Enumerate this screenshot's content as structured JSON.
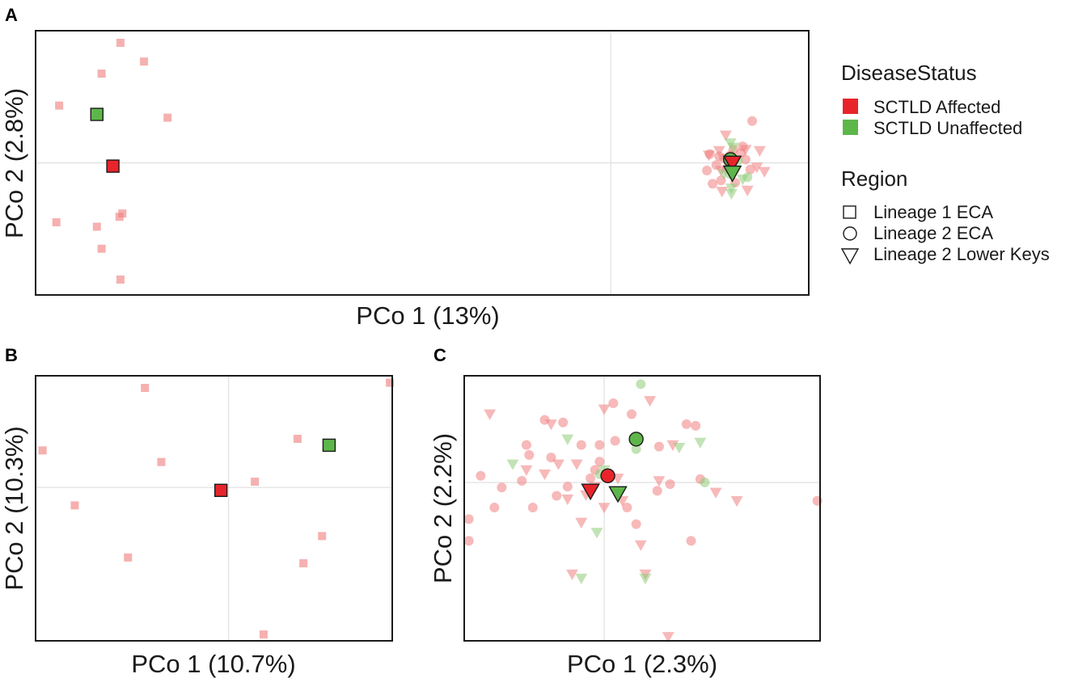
{
  "colors": {
    "affected": "#e8242a",
    "unaffected": "#5db64a",
    "affected_point": "#f08e8e",
    "unaffected_point": "#9fd28c"
  },
  "legend": {
    "disease_title": "DiseaseStatus",
    "disease_items": [
      {
        "label": "SCTLD Affected",
        "status": "affected"
      },
      {
        "label": "SCTLD Unaffected",
        "status": "unaffected"
      }
    ],
    "region_title": "Region",
    "region_items": [
      {
        "label": "Lineage 1 ECA",
        "shape": "square"
      },
      {
        "label": "Lineage 2 ECA",
        "shape": "circle"
      },
      {
        "label": "Lineage 2 Lower Keys",
        "shape": "triangle"
      }
    ]
  },
  "chart_data": [
    {
      "id": "A",
      "panel_label": "A",
      "type": "scatter",
      "xlabel": "PCo 1 (13%)",
      "ylabel": "PCo 2 (2.8%)",
      "xlim": [
        -0.61,
        0.21
      ],
      "ylim": [
        -0.12,
        0.12
      ],
      "points": [
        {
          "x": -0.52,
          "y": 0.109,
          "s": "a",
          "sh": "square"
        },
        {
          "x": -0.495,
          "y": 0.092,
          "s": "a",
          "sh": "square"
        },
        {
          "x": -0.54,
          "y": 0.081,
          "s": "a",
          "sh": "square"
        },
        {
          "x": -0.585,
          "y": 0.052,
          "s": "a",
          "sh": "square"
        },
        {
          "x": -0.47,
          "y": 0.041,
          "s": "a",
          "sh": "square"
        },
        {
          "x": -0.518,
          "y": -0.046,
          "s": "a",
          "sh": "square"
        },
        {
          "x": -0.521,
          "y": -0.049,
          "s": "a",
          "sh": "square"
        },
        {
          "x": -0.588,
          "y": -0.054,
          "s": "a",
          "sh": "square"
        },
        {
          "x": -0.545,
          "y": -0.058,
          "s": "a",
          "sh": "square"
        },
        {
          "x": -0.54,
          "y": -0.078,
          "s": "a",
          "sh": "square"
        },
        {
          "x": -0.52,
          "y": -0.106,
          "s": "a",
          "sh": "square"
        },
        {
          "x": 0.15,
          "y": 0.038,
          "s": "a",
          "sh": "circle"
        },
        {
          "x": 0.13,
          "y": 0.012,
          "s": "a",
          "sh": "circle"
        },
        {
          "x": 0.14,
          "y": 0.015,
          "s": "a",
          "sh": "circle"
        },
        {
          "x": 0.105,
          "y": 0.008,
          "s": "a",
          "sh": "circle"
        },
        {
          "x": 0.115,
          "y": 0.006,
          "s": "a",
          "sh": "circle"
        },
        {
          "x": 0.12,
          "y": 0.004,
          "s": "a",
          "sh": "circle"
        },
        {
          "x": 0.127,
          "y": 0.007,
          "s": "a",
          "sh": "circle"
        },
        {
          "x": 0.138,
          "y": 0.009,
          "s": "a",
          "sh": "circle"
        },
        {
          "x": 0.143,
          "y": 0.003,
          "s": "a",
          "sh": "circle"
        },
        {
          "x": 0.102,
          "y": -0.007,
          "s": "a",
          "sh": "circle"
        },
        {
          "x": 0.112,
          "y": -0.002,
          "s": "a",
          "sh": "circle"
        },
        {
          "x": 0.123,
          "y": -0.005,
          "s": "a",
          "sh": "circle"
        },
        {
          "x": 0.148,
          "y": -0.006,
          "s": "a",
          "sh": "circle"
        },
        {
          "x": 0.108,
          "y": -0.019,
          "s": "a",
          "sh": "circle"
        },
        {
          "x": 0.117,
          "y": -0.016,
          "s": "a",
          "sh": "circle"
        },
        {
          "x": 0.132,
          "y": -0.018,
          "s": "a",
          "sh": "circle"
        },
        {
          "x": 0.135,
          "y": 0.002,
          "s": "u",
          "sh": "circle"
        },
        {
          "x": 0.126,
          "y": -0.01,
          "s": "u",
          "sh": "circle"
        },
        {
          "x": 0.145,
          "y": -0.013,
          "s": "u",
          "sh": "circle"
        },
        {
          "x": 0.122,
          "y": 0.025,
          "s": "a",
          "sh": "triangle"
        },
        {
          "x": 0.104,
          "y": 0.007,
          "s": "a",
          "sh": "triangle"
        },
        {
          "x": 0.115,
          "y": 0.011,
          "s": "a",
          "sh": "triangle"
        },
        {
          "x": 0.143,
          "y": 0.012,
          "s": "a",
          "sh": "triangle"
        },
        {
          "x": 0.158,
          "y": 0.011,
          "s": "a",
          "sh": "triangle"
        },
        {
          "x": 0.155,
          "y": -0.004,
          "s": "a",
          "sh": "triangle"
        },
        {
          "x": 0.163,
          "y": -0.008,
          "s": "a",
          "sh": "triangle"
        },
        {
          "x": 0.117,
          "y": -0.007,
          "s": "a",
          "sh": "triangle"
        },
        {
          "x": 0.145,
          "y": -0.025,
          "s": "a",
          "sh": "triangle"
        },
        {
          "x": 0.118,
          "y": -0.026,
          "s": "a",
          "sh": "triangle"
        },
        {
          "x": 0.127,
          "y": 0.018,
          "s": "u",
          "sh": "triangle"
        },
        {
          "x": 0.13,
          "y": 0.014,
          "s": "u",
          "sh": "triangle"
        },
        {
          "x": 0.12,
          "y": -0.01,
          "s": "u",
          "sh": "triangle"
        },
        {
          "x": 0.14,
          "y": -0.015,
          "s": "u",
          "sh": "triangle"
        },
        {
          "x": 0.128,
          "y": -0.023,
          "s": "u",
          "sh": "triangle"
        },
        {
          "x": 0.128,
          "y": -0.028,
          "s": "u",
          "sh": "triangle"
        }
      ],
      "centroids": [
        {
          "x": -0.545,
          "y": 0.044,
          "s": "u",
          "sh": "square"
        },
        {
          "x": -0.528,
          "y": -0.003,
          "s": "a",
          "sh": "square"
        },
        {
          "x": 0.127,
          "y": 0.003,
          "s": "u",
          "sh": "circle"
        },
        {
          "x": 0.129,
          "y": 0.0,
          "s": "a",
          "sh": "triangle"
        },
        {
          "x": 0.129,
          "y": -0.009,
          "s": "u",
          "sh": "triangle"
        }
      ]
    },
    {
      "id": "B",
      "panel_label": "B",
      "type": "scatter",
      "xlabel": "PCo 1 (10.7%)",
      "ylabel": "PCo 2 (10.3%)",
      "xlim": [
        -0.33,
        0.28
      ],
      "ylim": [
        -0.265,
        0.193
      ],
      "points": [
        {
          "x": -0.143,
          "y": 0.172,
          "s": "a",
          "sh": "square"
        },
        {
          "x": 0.276,
          "y": 0.181,
          "s": "a",
          "sh": "square"
        },
        {
          "x": 0.118,
          "y": 0.084,
          "s": "a",
          "sh": "square"
        },
        {
          "x": -0.318,
          "y": 0.064,
          "s": "a",
          "sh": "square"
        },
        {
          "x": -0.115,
          "y": 0.044,
          "s": "a",
          "sh": "square"
        },
        {
          "x": 0.045,
          "y": 0.01,
          "s": "a",
          "sh": "square"
        },
        {
          "x": -0.263,
          "y": -0.031,
          "s": "a",
          "sh": "square"
        },
        {
          "x": 0.16,
          "y": -0.084,
          "s": "a",
          "sh": "square"
        },
        {
          "x": -0.172,
          "y": -0.121,
          "s": "a",
          "sh": "square"
        },
        {
          "x": 0.128,
          "y": -0.131,
          "s": "a",
          "sh": "square"
        },
        {
          "x": 0.06,
          "y": -0.254,
          "s": "a",
          "sh": "square"
        }
      ],
      "centroids": [
        {
          "x": 0.172,
          "y": 0.073,
          "s": "u",
          "sh": "square"
        },
        {
          "x": -0.013,
          "y": -0.005,
          "s": "a",
          "sh": "square"
        }
      ]
    },
    {
      "id": "C",
      "panel_label": "C",
      "type": "scatter",
      "xlabel": "PCo 1 (2.3%)",
      "ylabel": "PCo 2 (2.2%)",
      "xlim": [
        -0.153,
        0.236
      ],
      "ylim": [
        -0.19,
        0.128
      ],
      "points": [
        {
          "x": -0.148,
          "y": -0.044,
          "s": "a",
          "sh": "circle"
        },
        {
          "x": -0.148,
          "y": -0.07,
          "s": "a",
          "sh": "circle"
        },
        {
          "x": -0.135,
          "y": 0.008,
          "s": "a",
          "sh": "circle"
        },
        {
          "x": -0.12,
          "y": -0.03,
          "s": "a",
          "sh": "circle"
        },
        {
          "x": -0.112,
          "y": -0.006,
          "s": "a",
          "sh": "circle"
        },
        {
          "x": -0.09,
          "y": 0.002,
          "s": "a",
          "sh": "circle"
        },
        {
          "x": -0.085,
          "y": 0.045,
          "s": "a",
          "sh": "circle"
        },
        {
          "x": -0.082,
          "y": 0.033,
          "s": "a",
          "sh": "circle"
        },
        {
          "x": -0.078,
          "y": -0.03,
          "s": "a",
          "sh": "circle"
        },
        {
          "x": -0.065,
          "y": 0.075,
          "s": "a",
          "sh": "circle"
        },
        {
          "x": -0.058,
          "y": 0.03,
          "s": "a",
          "sh": "circle"
        },
        {
          "x": -0.052,
          "y": -0.016,
          "s": "a",
          "sh": "circle"
        },
        {
          "x": -0.045,
          "y": 0.072,
          "s": "a",
          "sh": "circle"
        },
        {
          "x": -0.04,
          "y": -0.005,
          "s": "a",
          "sh": "circle"
        },
        {
          "x": -0.025,
          "y": 0.045,
          "s": "a",
          "sh": "circle"
        },
        {
          "x": -0.015,
          "y": 0.005,
          "s": "a",
          "sh": "circle"
        },
        {
          "x": -0.005,
          "y": 0.025,
          "s": "a",
          "sh": "circle"
        },
        {
          "x": 0.012,
          "y": 0.05,
          "s": "a",
          "sh": "circle"
        },
        {
          "x": 0.025,
          "y": -0.03,
          "s": "a",
          "sh": "circle"
        },
        {
          "x": 0.03,
          "y": 0.082,
          "s": "a",
          "sh": "circle"
        },
        {
          "x": 0.058,
          "y": -0.01,
          "s": "a",
          "sh": "circle"
        },
        {
          "x": 0.072,
          "y": -0.002,
          "s": "a",
          "sh": "circle"
        },
        {
          "x": 0.09,
          "y": 0.07,
          "s": "a",
          "sh": "circle"
        },
        {
          "x": 0.1,
          "y": 0.068,
          "s": "a",
          "sh": "circle"
        },
        {
          "x": 0.105,
          "y": 0.004,
          "s": "a",
          "sh": "circle"
        },
        {
          "x": 0.095,
          "y": -0.07,
          "s": "a",
          "sh": "circle"
        },
        {
          "x": 0.233,
          "y": -0.022,
          "s": "a",
          "sh": "circle"
        },
        {
          "x": -0.01,
          "y": 0.015,
          "s": "a",
          "sh": "circle"
        },
        {
          "x": 0.035,
          "y": -0.05,
          "s": "a",
          "sh": "circle"
        },
        {
          "x": 0.01,
          "y": 0.095,
          "s": "a",
          "sh": "circle"
        },
        {
          "x": -0.005,
          "y": 0.045,
          "s": "a",
          "sh": "circle"
        },
        {
          "x": 0.06,
          "y": 0.043,
          "s": "a",
          "sh": "circle"
        },
        {
          "x": 0.04,
          "y": 0.118,
          "s": "u",
          "sh": "circle"
        },
        {
          "x": 0.035,
          "y": 0.04,
          "s": "u",
          "sh": "circle"
        },
        {
          "x": -0.005,
          "y": 0.01,
          "s": "u",
          "sh": "circle"
        },
        {
          "x": 0.11,
          "y": 0.0,
          "s": "u",
          "sh": "circle"
        },
        {
          "x": -0.125,
          "y": 0.082,
          "s": "a",
          "sh": "triangle"
        },
        {
          "x": -0.085,
          "y": 0.015,
          "s": "a",
          "sh": "triangle"
        },
        {
          "x": -0.065,
          "y": 0.01,
          "s": "a",
          "sh": "triangle"
        },
        {
          "x": -0.05,
          "y": 0.022,
          "s": "a",
          "sh": "triangle"
        },
        {
          "x": -0.04,
          "y": -0.02,
          "s": "a",
          "sh": "triangle"
        },
        {
          "x": -0.03,
          "y": 0.022,
          "s": "a",
          "sh": "triangle"
        },
        {
          "x": -0.025,
          "y": -0.048,
          "s": "a",
          "sh": "triangle"
        },
        {
          "x": -0.02,
          "y": -0.015,
          "s": "a",
          "sh": "triangle"
        },
        {
          "x": -0.01,
          "y": -0.005,
          "s": "a",
          "sh": "triangle"
        },
        {
          "x": 0.0,
          "y": 0.088,
          "s": "a",
          "sh": "triangle"
        },
        {
          "x": 0.0,
          "y": -0.03,
          "s": "a",
          "sh": "triangle"
        },
        {
          "x": 0.015,
          "y": 0.005,
          "s": "a",
          "sh": "triangle"
        },
        {
          "x": 0.02,
          "y": -0.022,
          "s": "a",
          "sh": "triangle"
        },
        {
          "x": 0.04,
          "y": -0.075,
          "s": "a",
          "sh": "triangle"
        },
        {
          "x": 0.05,
          "y": 0.098,
          "s": "a",
          "sh": "triangle"
        },
        {
          "x": 0.06,
          "y": 0.002,
          "s": "a",
          "sh": "triangle"
        },
        {
          "x": 0.075,
          "y": 0.045,
          "s": "a",
          "sh": "triangle"
        },
        {
          "x": 0.122,
          "y": -0.012,
          "s": "a",
          "sh": "triangle"
        },
        {
          "x": 0.145,
          "y": -0.022,
          "s": "a",
          "sh": "triangle"
        },
        {
          "x": 0.07,
          "y": -0.185,
          "s": "a",
          "sh": "triangle"
        },
        {
          "x": -0.035,
          "y": -0.11,
          "s": "a",
          "sh": "triangle"
        },
        {
          "x": 0.045,
          "y": -0.11,
          "s": "a",
          "sh": "triangle"
        },
        {
          "x": -0.058,
          "y": 0.07,
          "s": "a",
          "sh": "triangle"
        },
        {
          "x": -0.1,
          "y": 0.022,
          "s": "u",
          "sh": "triangle"
        },
        {
          "x": -0.04,
          "y": 0.052,
          "s": "u",
          "sh": "triangle"
        },
        {
          "x": -0.008,
          "y": -0.06,
          "s": "u",
          "sh": "triangle"
        },
        {
          "x": -0.025,
          "y": -0.115,
          "s": "u",
          "sh": "triangle"
        },
        {
          "x": 0.045,
          "y": -0.115,
          "s": "u",
          "sh": "triangle"
        },
        {
          "x": 0.082,
          "y": 0.042,
          "s": "u",
          "sh": "triangle"
        },
        {
          "x": 0.105,
          "y": 0.048,
          "s": "u",
          "sh": "triangle"
        },
        {
          "x": 0.0,
          "y": 0.015,
          "s": "u",
          "sh": "triangle"
        }
      ],
      "centroids": [
        {
          "x": 0.035,
          "y": 0.052,
          "s": "u",
          "sh": "circle"
        },
        {
          "x": 0.004,
          "y": 0.008,
          "s": "a",
          "sh": "circle"
        },
        {
          "x": -0.015,
          "y": -0.01,
          "s": "a",
          "sh": "triangle"
        },
        {
          "x": 0.015,
          "y": -0.013,
          "s": "u",
          "sh": "triangle"
        }
      ]
    }
  ]
}
